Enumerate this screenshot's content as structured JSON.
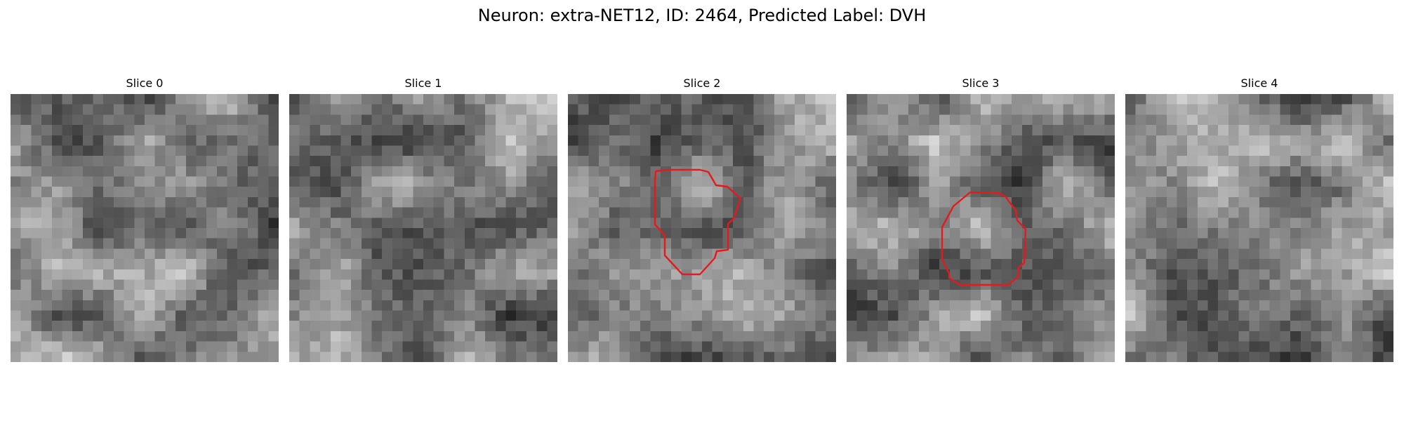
{
  "title": "Neuron: extra-NET12, ID: 2464, Predicted Label: DVH",
  "grid_size": 26,
  "outline_color": "#e41a1c",
  "slices": [
    {
      "label": "Slice 0",
      "has_roi": false
    },
    {
      "label": "Slice 1",
      "has_roi": false
    },
    {
      "label": "Slice 2",
      "has_roi": true
    },
    {
      "label": "Slice 3",
      "has_roi": true
    },
    {
      "label": "Slice 4",
      "has_roi": false
    }
  ]
}
